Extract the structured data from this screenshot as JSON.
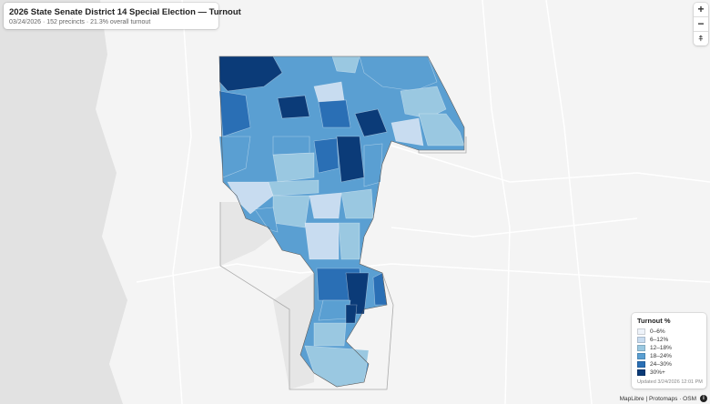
{
  "header": {
    "title": "2026 State Senate District 14 Special Election — Turnout",
    "subtitle": "03/24/2026 · 152 precincts · 21.3% overall turnout"
  },
  "controls": {
    "zoom_in": "+",
    "zoom_out": "−",
    "compass": "⍏"
  },
  "legend": {
    "title": "Turnout %",
    "items": [
      {
        "label": "0–6%",
        "color": "#eef3fa"
      },
      {
        "label": "6–12%",
        "color": "#c8dcf0"
      },
      {
        "label": "12–18%",
        "color": "#9ac8e1"
      },
      {
        "label": "18–24%",
        "color": "#5a9fd2"
      },
      {
        "label": "24–30%",
        "color": "#2a6fb5"
      },
      {
        "label": "30%+",
        "color": "#0b3b78"
      }
    ],
    "updated": "Updated 3/24/2026 12:01 PM"
  },
  "attribution": {
    "text": "MapLibre | Protomaps · OSM",
    "info": "i"
  }
}
